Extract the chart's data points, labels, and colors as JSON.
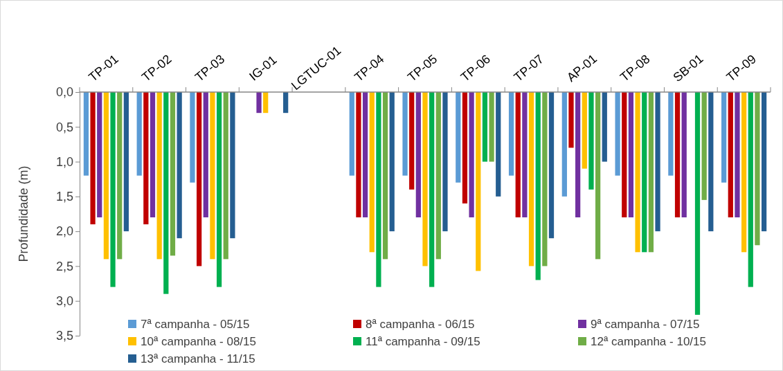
{
  "chart_data": {
    "type": "bar",
    "ylabel": "Profundidade (m)",
    "categories": [
      "TP-01",
      "TP-02",
      "TP-03",
      "IG-01",
      "LGTUC-01",
      "TP-04",
      "TP-05",
      "TP-06",
      "TP-07",
      "AP-01",
      "TP-08",
      "SB-01",
      "TP-09"
    ],
    "ylim": [
      3.5,
      0
    ],
    "yticks": [
      {
        "value": 0,
        "label": "0,0"
      },
      {
        "value": 0.5,
        "label": "0,5"
      },
      {
        "value": 1,
        "label": "1,0"
      },
      {
        "value": 1.5,
        "label": "1,5"
      },
      {
        "value": 2,
        "label": "2,0"
      },
      {
        "value": 2.5,
        "label": "2,5"
      },
      {
        "value": 3,
        "label": "3,0"
      },
      {
        "value": 3.5,
        "label": "3,5"
      }
    ],
    "legend": "bottom",
    "series": [
      {
        "name": "7ª campanha - 05/15",
        "color": "#5b9bd5",
        "values": [
          1.2,
          1.2,
          1.3,
          null,
          null,
          1.2,
          1.2,
          1.3,
          1.2,
          1.5,
          1.2,
          1.2,
          1.3
        ]
      },
      {
        "name": "8ª campanha - 06/15",
        "color": "#c00000",
        "values": [
          1.9,
          1.9,
          2.5,
          null,
          null,
          1.8,
          1.4,
          1.6,
          1.8,
          0.8,
          1.8,
          1.8,
          1.8
        ]
      },
      {
        "name": "9ª campanha - 07/15",
        "color": "#7030a0",
        "values": [
          1.8,
          1.8,
          1.8,
          0.3,
          null,
          1.8,
          1.8,
          1.8,
          1.8,
          1.8,
          1.8,
          1.8,
          1.8
        ]
      },
      {
        "name": "10ª campanha - 08/15",
        "color": "#ffc000",
        "values": [
          2.4,
          2.4,
          2.4,
          0.3,
          null,
          2.3,
          2.5,
          2.57,
          2.5,
          1.1,
          2.3,
          null,
          2.3
        ]
      },
      {
        "name": "11ª campanha - 09/15",
        "color": "#00b050",
        "values": [
          2.8,
          2.9,
          2.8,
          null,
          null,
          2.8,
          2.8,
          1.0,
          2.7,
          1.4,
          2.3,
          3.2,
          2.8
        ]
      },
      {
        "name": "12ª campanha - 10/15",
        "color": "#70ad47",
        "values": [
          2.4,
          2.35,
          2.4,
          null,
          null,
          2.4,
          2.4,
          1.0,
          2.5,
          2.4,
          2.3,
          1.55,
          2.2
        ]
      },
      {
        "name": "13ª campanha - 11/15",
        "color": "#255e91",
        "values": [
          2.0,
          2.1,
          2.1,
          0.3,
          null,
          2.0,
          2.0,
          1.5,
          2.1,
          1.0,
          2.0,
          2.0,
          2.0
        ]
      }
    ]
  }
}
